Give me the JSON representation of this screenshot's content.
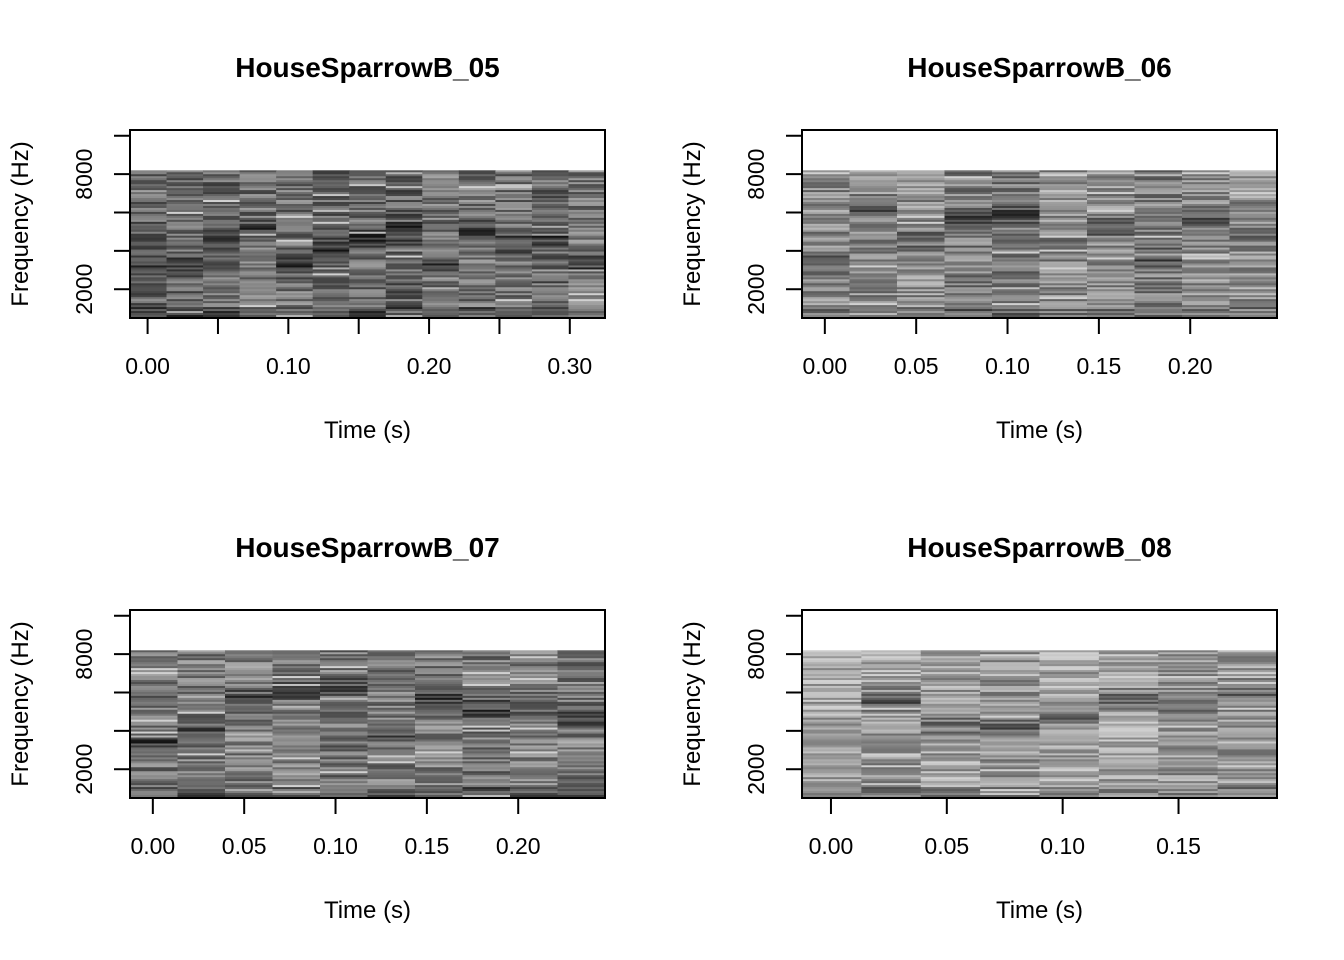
{
  "chart_data": [
    {
      "type": "heatmap",
      "title": "HouseSparrowB_05",
      "xlabel": "Time (s)",
      "ylabel": "Frequency (Hz)",
      "x_ticks": [
        "0.00",
        "0.10",
        "0.20",
        "0.30"
      ],
      "x_tick_values": [
        0.0,
        0.05,
        0.1,
        0.15,
        0.2,
        0.25,
        0.3
      ],
      "y_ticks": [
        "2000",
        "8000"
      ],
      "y_tick_values": [
        2000,
        4000,
        6000,
        8000,
        10000
      ],
      "xlim": [
        -0.0125,
        0.325
      ],
      "ylim": [
        500,
        10300
      ],
      "data_freq_max": 8200,
      "time_columns": 13,
      "brightness_bias": 0.12,
      "seed": 5,
      "colormap": "grayscale"
    },
    {
      "type": "heatmap",
      "title": "HouseSparrowB_06",
      "xlabel": "Time (s)",
      "ylabel": "Frequency (Hz)",
      "x_ticks": [
        "0.00",
        "0.05",
        "0.10",
        "0.15",
        "0.20"
      ],
      "x_tick_values": [
        0.0,
        0.05,
        0.1,
        0.15,
        0.2
      ],
      "y_ticks": [
        "2000",
        "8000"
      ],
      "y_tick_values": [
        2000,
        4000,
        6000,
        8000,
        10000
      ],
      "xlim": [
        -0.0125,
        0.2475
      ],
      "ylim": [
        500,
        10300
      ],
      "data_freq_max": 8200,
      "time_columns": 10,
      "brightness_bias": 0.22,
      "seed": 6,
      "colormap": "grayscale"
    },
    {
      "type": "heatmap",
      "title": "HouseSparrowB_07",
      "xlabel": "Time (s)",
      "ylabel": "Frequency (Hz)",
      "x_ticks": [
        "0.00",
        "0.05",
        "0.10",
        "0.15",
        "0.20"
      ],
      "x_tick_values": [
        0.0,
        0.05,
        0.1,
        0.15,
        0.2
      ],
      "y_ticks": [
        "2000",
        "8000"
      ],
      "y_tick_values": [
        2000,
        4000,
        6000,
        8000,
        10000
      ],
      "xlim": [
        -0.0125,
        0.2475
      ],
      "ylim": [
        500,
        10300
      ],
      "data_freq_max": 8200,
      "time_columns": 10,
      "brightness_bias": 0.18,
      "seed": 7,
      "colormap": "grayscale"
    },
    {
      "type": "heatmap",
      "title": "HouseSparrowB_08",
      "xlabel": "Time (s)",
      "ylabel": "Frequency (Hz)",
      "x_ticks": [
        "0.00",
        "0.05",
        "0.10",
        "0.15"
      ],
      "x_tick_values": [
        0.0,
        0.05,
        0.1,
        0.15
      ],
      "y_ticks": [
        "2000",
        "8000"
      ],
      "y_tick_values": [
        2000,
        4000,
        6000,
        8000,
        10000
      ],
      "xlim": [
        -0.0125,
        0.1925
      ],
      "ylim": [
        500,
        10300
      ],
      "data_freq_max": 8200,
      "time_columns": 8,
      "brightness_bias": 0.32,
      "seed": 8,
      "colormap": "grayscale"
    }
  ]
}
